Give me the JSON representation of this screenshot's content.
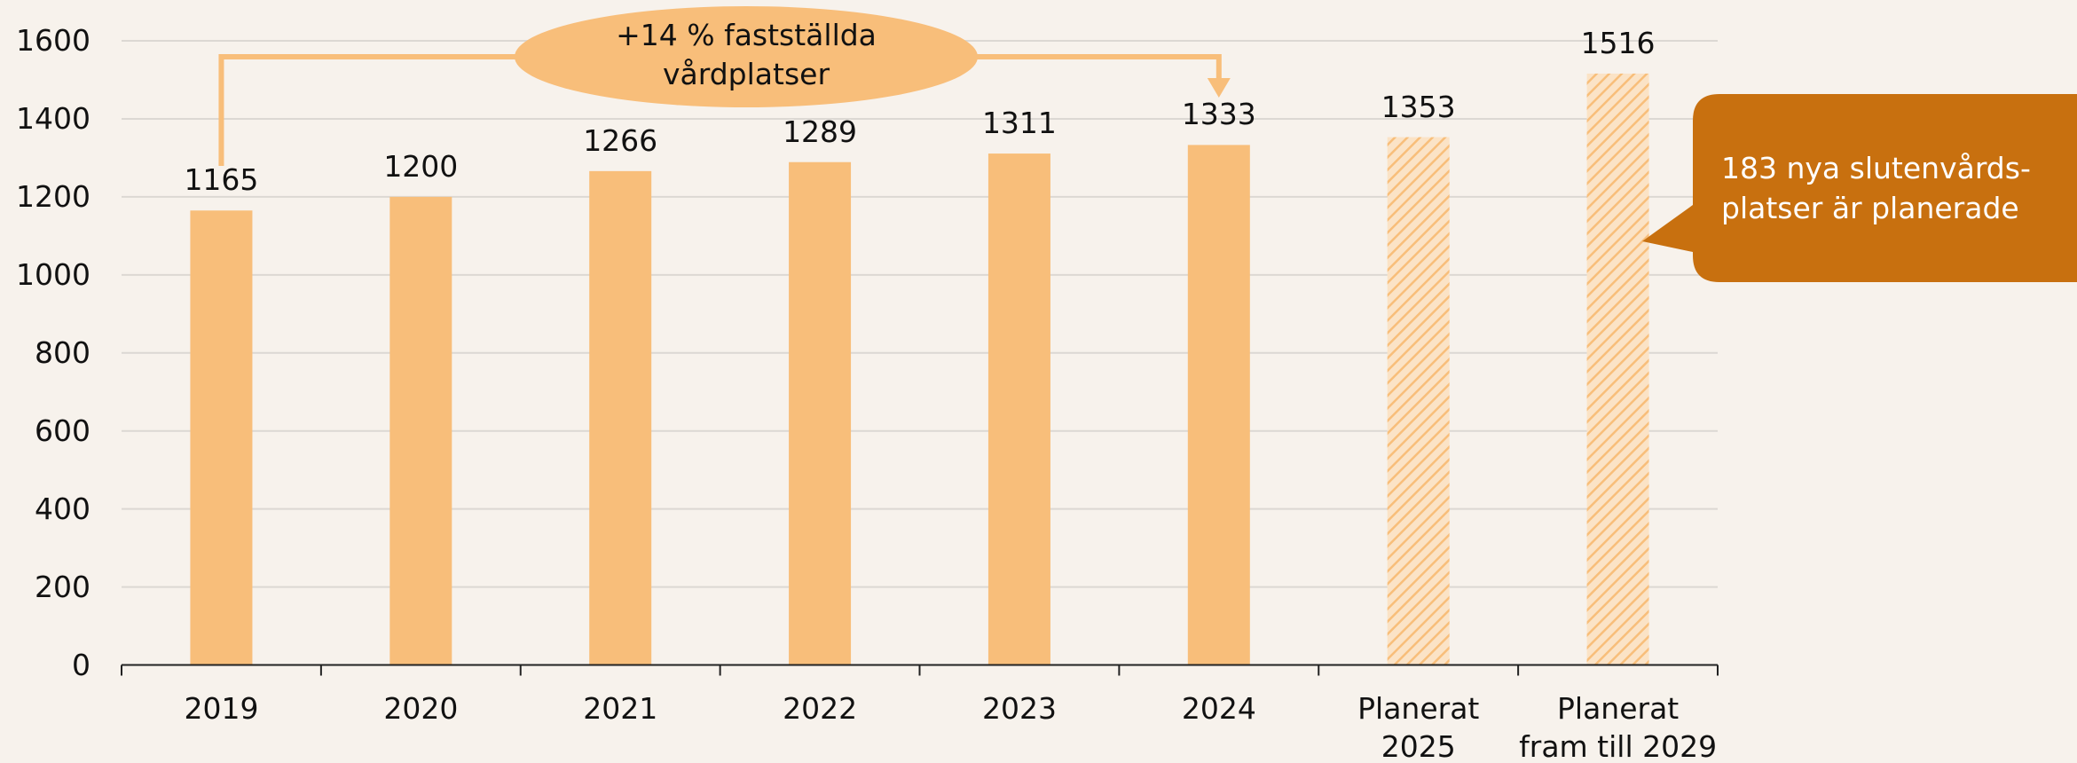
{
  "chart_data": {
    "type": "bar",
    "categories": [
      "2019",
      "2020",
      "2021",
      "2022",
      "2023",
      "2024",
      "Planerat 2025",
      "Planerat fram till 2029"
    ],
    "values": [
      1165,
      1200,
      1266,
      1289,
      1311,
      1333,
      1353,
      1516
    ],
    "patterns": [
      "solid",
      "solid",
      "solid",
      "solid",
      "solid",
      "solid",
      "hatched",
      "hatched"
    ],
    "color": "#f8be7a",
    "ylim": [
      0,
      1600
    ],
    "yticks": [
      0,
      200,
      400,
      600,
      800,
      1000,
      1200,
      1400,
      1600
    ],
    "grid": true,
    "annotations": [
      "+14 % fastställda vårdplatser",
      "183 nya slutenvårds-platser är planerade"
    ]
  }
}
